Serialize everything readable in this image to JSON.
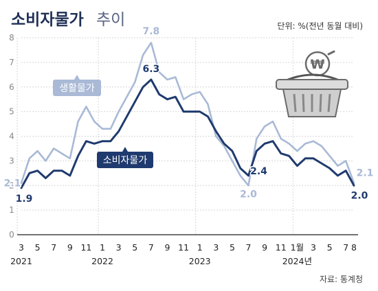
{
  "title": "소비자물가",
  "title_suffix": "추이",
  "unit": "단위: %(전년 동월 대비)",
  "source": "자료: 통계청",
  "colors": {
    "cpi": "#1f3a6e",
    "living": "#a9b9d6",
    "axis": "#444444",
    "grid": "#d6d6d6"
  },
  "basket_icon": "shopping-basket-with-won-coin-icon",
  "chart_data": {
    "type": "line",
    "title": "소비자물가 추이",
    "ylim": [
      0,
      8
    ],
    "y_ticks": [
      "0",
      "1",
      "2",
      "3",
      "4",
      "5",
      "6",
      "7",
      "8"
    ],
    "x": [
      "2021-03",
      "2021-04",
      "2021-05",
      "2021-06",
      "2021-07",
      "2021-08",
      "2021-09",
      "2021-10",
      "2021-11",
      "2021-12",
      "2022-01",
      "2022-02",
      "2022-03",
      "2022-04",
      "2022-05",
      "2022-06",
      "2022-07",
      "2022-08",
      "2022-09",
      "2022-10",
      "2022-11",
      "2022-12",
      "2023-01",
      "2023-02",
      "2023-03",
      "2023-04",
      "2023-05",
      "2023-06",
      "2023-07",
      "2023-08",
      "2023-09",
      "2023-10",
      "2023-11",
      "2023-12",
      "2024-01",
      "2024-02",
      "2024-03",
      "2024-04",
      "2024-05",
      "2024-06",
      "2024-07",
      "2024-08"
    ],
    "x_tick_labels": [
      "3",
      "5",
      "7",
      "9",
      "11",
      "1",
      "3",
      "5",
      "7",
      "9",
      "11",
      "1",
      "3",
      "5",
      "7",
      "9",
      "11",
      "1월",
      "3",
      "5",
      "7",
      "8"
    ],
    "x_tick_months": [
      "2021-03",
      "2021-05",
      "2021-07",
      "2021-09",
      "2021-11",
      "2022-01",
      "2022-03",
      "2022-05",
      "2022-07",
      "2022-09",
      "2022-11",
      "2023-01",
      "2023-03",
      "2023-05",
      "2023-07",
      "2023-09",
      "2023-11",
      "2024-01",
      "2024-03",
      "2024-05",
      "2024-07",
      "2024-08"
    ],
    "years": [
      {
        "label": "2021",
        "month": "2021-03"
      },
      {
        "label": "2022",
        "month": "2022-01"
      },
      {
        "label": "2023",
        "month": "2023-01"
      },
      {
        "label": "2024년",
        "month": "2024-01"
      }
    ],
    "series": [
      {
        "key": "living",
        "name": "생활물가",
        "values": [
          2.1,
          3.1,
          3.4,
          3.0,
          3.5,
          3.3,
          3.1,
          4.6,
          5.2,
          4.6,
          4.3,
          4.3,
          5.0,
          5.6,
          6.2,
          7.3,
          7.8,
          6.6,
          6.3,
          6.4,
          5.5,
          5.7,
          5.8,
          5.3,
          4.0,
          3.6,
          3.0,
          2.4,
          2.0,
          3.9,
          4.4,
          4.6,
          3.9,
          3.7,
          3.4,
          3.7,
          3.8,
          3.6,
          3.2,
          2.8,
          3.0,
          2.1
        ],
        "labels": [
          {
            "index": 0,
            "text": "2.1"
          },
          {
            "index": 16,
            "text": "7.8"
          },
          {
            "index": 28,
            "text": "2.0"
          },
          {
            "index": 41,
            "text": "2.1"
          }
        ]
      },
      {
        "key": "cpi",
        "name": "소비자물가",
        "values": [
          1.9,
          2.5,
          2.6,
          2.3,
          2.6,
          2.6,
          2.4,
          3.2,
          3.8,
          3.7,
          3.8,
          3.8,
          4.2,
          4.8,
          5.4,
          6.0,
          6.3,
          5.7,
          5.5,
          5.6,
          5.0,
          5.0,
          5.0,
          4.8,
          4.2,
          3.7,
          3.4,
          2.7,
          2.4,
          3.4,
          3.7,
          3.8,
          3.3,
          3.2,
          2.8,
          3.1,
          3.1,
          2.9,
          2.7,
          2.4,
          2.6,
          2.0
        ],
        "labels": [
          {
            "index": 0,
            "text": "1.9"
          },
          {
            "index": 16,
            "text": "6.3"
          },
          {
            "index": 28,
            "text": "2.4"
          },
          {
            "index": 41,
            "text": "2.0"
          }
        ]
      }
    ]
  }
}
